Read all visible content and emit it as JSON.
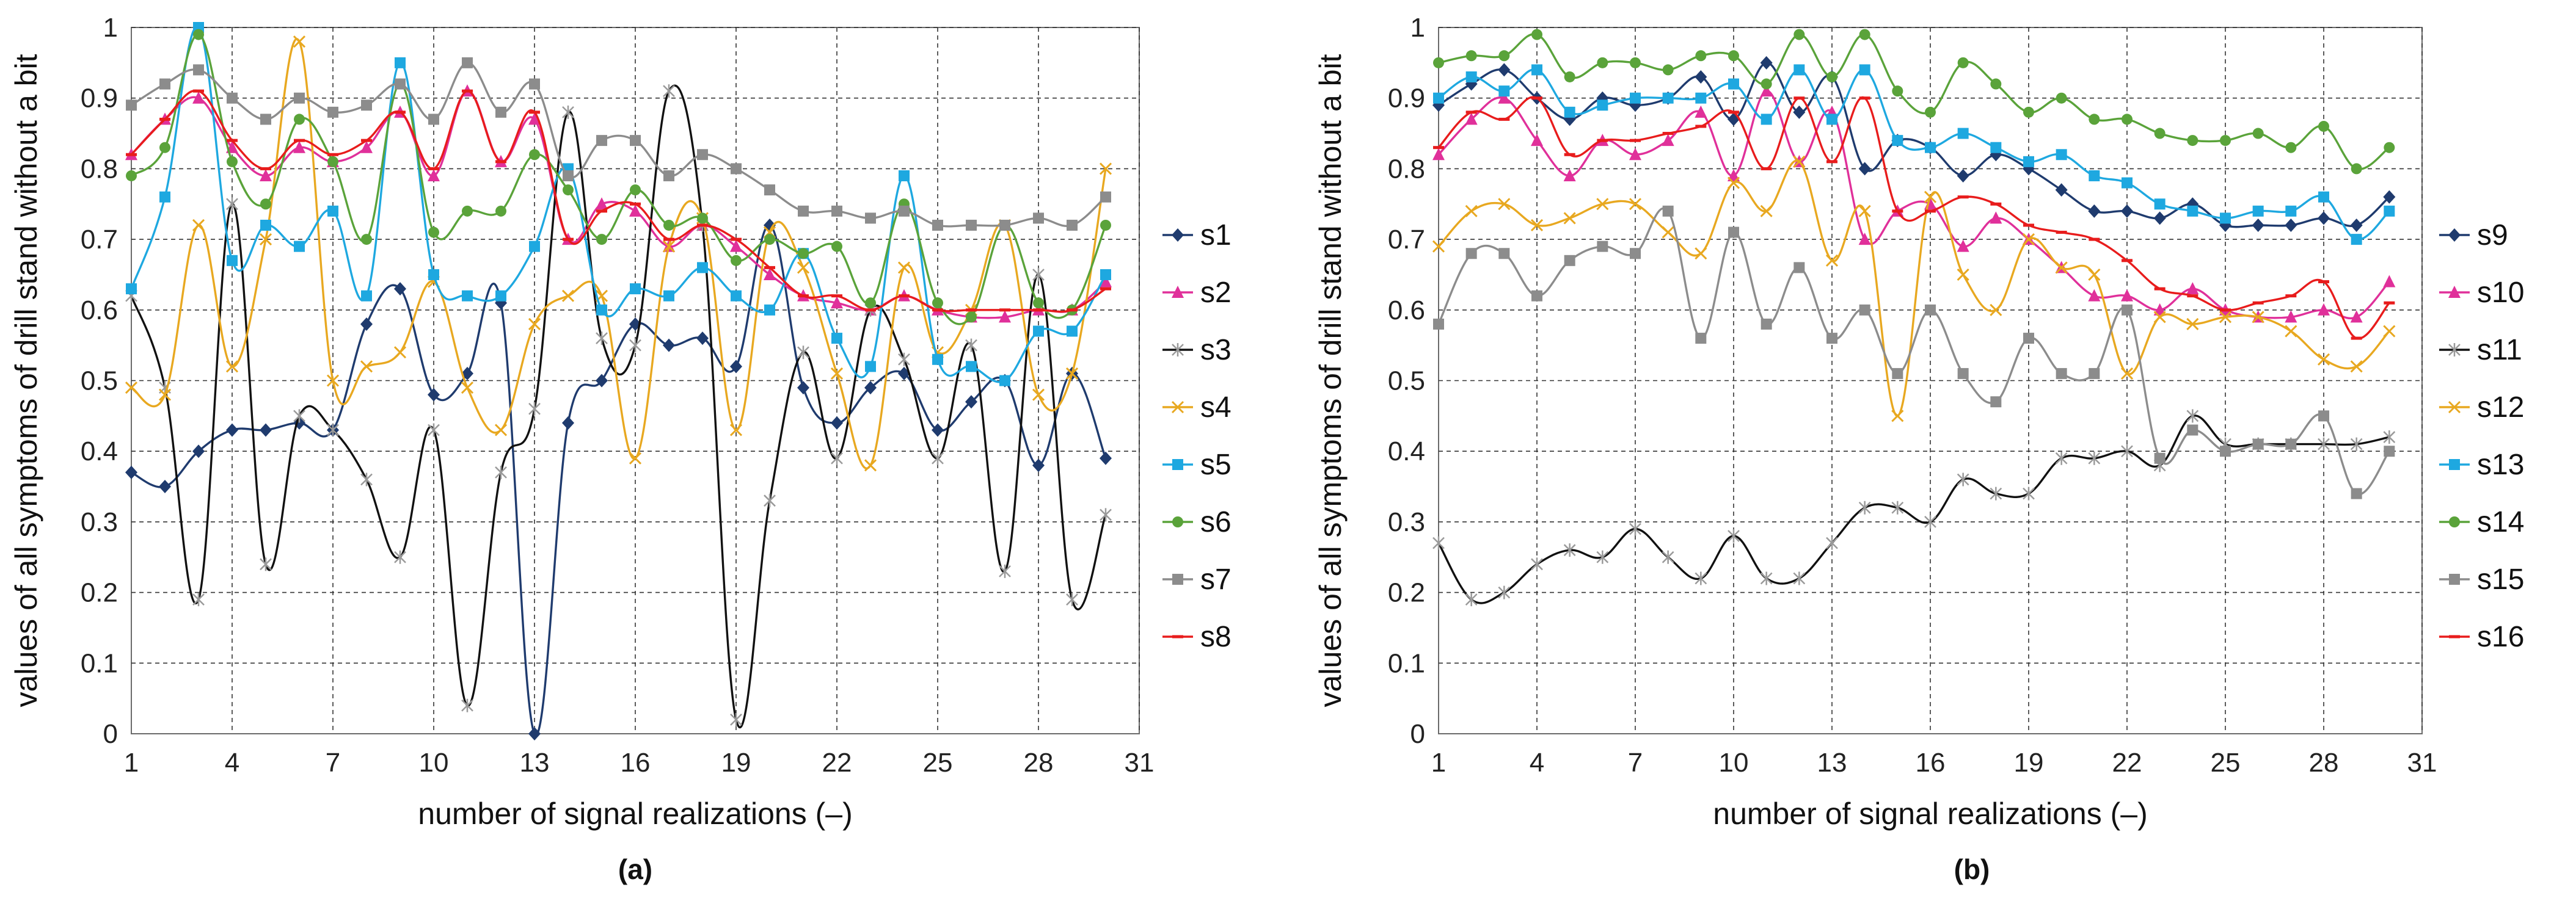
{
  "chart_data": [
    {
      "type": "line",
      "panel_label": "(a)",
      "title": "",
      "xlabel": "number of signal realizations (–)",
      "ylabel": "values of all symptoms of drill stand without a bit",
      "xlim": [
        1,
        31
      ],
      "ylim": [
        0,
        1
      ],
      "xticks": [
        1,
        4,
        7,
        10,
        13,
        16,
        19,
        22,
        25,
        28,
        31
      ],
      "yticks": [
        0,
        0.1,
        0.2,
        0.3,
        0.4,
        0.5,
        0.6,
        0.7,
        0.8,
        0.9,
        1
      ],
      "grid": true,
      "legend_position": "right",
      "x": [
        1,
        2,
        3,
        4,
        5,
        6,
        7,
        8,
        9,
        10,
        11,
        12,
        13,
        14,
        15,
        16,
        17,
        18,
        19,
        20,
        21,
        22,
        23,
        24,
        25,
        26,
        27,
        28,
        29,
        30
      ],
      "series": [
        {
          "name": "s1",
          "color": "#1f3b6e",
          "marker": "diamond",
          "values": [
            0.37,
            0.35,
            0.4,
            0.43,
            0.43,
            0.44,
            0.43,
            0.58,
            0.63,
            0.48,
            0.51,
            0.61,
            0.0,
            0.44,
            0.5,
            0.58,
            0.55,
            0.56,
            0.52,
            0.72,
            0.49,
            0.44,
            0.49,
            0.51,
            0.43,
            0.47,
            0.5,
            0.38,
            0.51,
            0.39
          ]
        },
        {
          "name": "s2",
          "color": "#e0309a",
          "marker": "triangle",
          "values": [
            0.82,
            0.87,
            0.9,
            0.83,
            0.79,
            0.83,
            0.81,
            0.83,
            0.88,
            0.79,
            0.91,
            0.81,
            0.87,
            0.7,
            0.75,
            0.74,
            0.69,
            0.72,
            0.69,
            0.65,
            0.62,
            0.61,
            0.6,
            0.62,
            0.6,
            0.59,
            0.59,
            0.6,
            0.6,
            0.64
          ]
        },
        {
          "name": "s3",
          "color": "#111111",
          "marker": "star",
          "values": [
            0.62,
            0.49,
            0.19,
            0.75,
            0.24,
            0.45,
            0.43,
            0.36,
            0.25,
            0.43,
            0.04,
            0.37,
            0.46,
            0.88,
            0.56,
            0.55,
            0.91,
            0.72,
            0.02,
            0.33,
            0.54,
            0.39,
            0.6,
            0.53,
            0.39,
            0.55,
            0.23,
            0.65,
            0.19,
            0.31
          ]
        },
        {
          "name": "s4",
          "color": "#e8a820",
          "marker": "cross",
          "values": [
            0.49,
            0.48,
            0.72,
            0.52,
            0.7,
            0.98,
            0.5,
            0.52,
            0.54,
            0.64,
            0.49,
            0.43,
            0.58,
            0.62,
            0.62,
            0.39,
            0.69,
            0.73,
            0.43,
            0.71,
            0.66,
            0.51,
            0.38,
            0.66,
            0.54,
            0.6,
            0.72,
            0.48,
            0.51,
            0.8
          ]
        },
        {
          "name": "s5",
          "color": "#1ea8e0",
          "marker": "square",
          "values": [
            0.63,
            0.76,
            1.0,
            0.67,
            0.72,
            0.69,
            0.74,
            0.62,
            0.95,
            0.65,
            0.62,
            0.62,
            0.69,
            0.8,
            0.6,
            0.63,
            0.62,
            0.66,
            0.62,
            0.6,
            0.68,
            0.56,
            0.52,
            0.79,
            0.53,
            0.52,
            0.5,
            0.57,
            0.57,
            0.65
          ]
        },
        {
          "name": "s6",
          "color": "#5aa33a",
          "marker": "circle",
          "values": [
            0.79,
            0.83,
            0.99,
            0.81,
            0.75,
            0.87,
            0.81,
            0.7,
            0.92,
            0.71,
            0.74,
            0.74,
            0.82,
            0.77,
            0.7,
            0.77,
            0.72,
            0.73,
            0.67,
            0.7,
            0.68,
            0.69,
            0.61,
            0.75,
            0.61,
            0.59,
            0.72,
            0.61,
            0.6,
            0.72
          ]
        },
        {
          "name": "s7",
          "color": "#8c8c8c",
          "marker": "square",
          "values": [
            0.89,
            0.92,
            0.94,
            0.9,
            0.87,
            0.9,
            0.88,
            0.89,
            0.92,
            0.87,
            0.95,
            0.88,
            0.92,
            0.79,
            0.84,
            0.84,
            0.79,
            0.82,
            0.8,
            0.77,
            0.74,
            0.74,
            0.73,
            0.74,
            0.72,
            0.72,
            0.72,
            0.73,
            0.72,
            0.76
          ]
        },
        {
          "name": "s8",
          "color": "#e81c1c",
          "marker": "dash",
          "values": [
            0.82,
            0.87,
            0.91,
            0.84,
            0.8,
            0.84,
            0.82,
            0.84,
            0.88,
            0.8,
            0.91,
            0.81,
            0.88,
            0.7,
            0.74,
            0.75,
            0.7,
            0.72,
            0.7,
            0.66,
            0.62,
            0.62,
            0.6,
            0.62,
            0.6,
            0.6,
            0.6,
            0.6,
            0.6,
            0.63
          ]
        }
      ]
    },
    {
      "type": "line",
      "panel_label": "(b)",
      "title": "",
      "xlabel": "number of signal realizations (–)",
      "ylabel": "values of all symptoms of drill stand without a bit",
      "xlim": [
        1,
        31
      ],
      "ylim": [
        0,
        1
      ],
      "xticks": [
        1,
        4,
        7,
        10,
        13,
        16,
        19,
        22,
        25,
        28,
        31
      ],
      "yticks": [
        0,
        0.1,
        0.2,
        0.3,
        0.4,
        0.5,
        0.6,
        0.7,
        0.8,
        0.9,
        1
      ],
      "grid": true,
      "legend_position": "right",
      "x": [
        1,
        2,
        3,
        4,
        5,
        6,
        7,
        8,
        9,
        10,
        11,
        12,
        13,
        14,
        15,
        16,
        17,
        18,
        19,
        20,
        21,
        22,
        23,
        24,
        25,
        26,
        27,
        28,
        29,
        30
      ],
      "series": [
        {
          "name": "s9",
          "color": "#1f3b6e",
          "marker": "diamond",
          "values": [
            0.89,
            0.92,
            0.94,
            0.9,
            0.87,
            0.9,
            0.89,
            0.9,
            0.93,
            0.87,
            0.95,
            0.88,
            0.93,
            0.8,
            0.84,
            0.83,
            0.79,
            0.82,
            0.8,
            0.77,
            0.74,
            0.74,
            0.73,
            0.75,
            0.72,
            0.72,
            0.72,
            0.73,
            0.72,
            0.76
          ]
        },
        {
          "name": "s10",
          "color": "#e0309a",
          "marker": "triangle",
          "values": [
            0.82,
            0.87,
            0.9,
            0.84,
            0.79,
            0.84,
            0.82,
            0.84,
            0.88,
            0.79,
            0.91,
            0.81,
            0.88,
            0.7,
            0.74,
            0.75,
            0.69,
            0.73,
            0.7,
            0.66,
            0.62,
            0.62,
            0.6,
            0.63,
            0.6,
            0.59,
            0.59,
            0.6,
            0.59,
            0.64
          ]
        },
        {
          "name": "s11",
          "color": "#111111",
          "marker": "star",
          "values": [
            0.27,
            0.19,
            0.2,
            0.24,
            0.26,
            0.25,
            0.29,
            0.25,
            0.22,
            0.28,
            0.22,
            0.22,
            0.27,
            0.32,
            0.32,
            0.3,
            0.36,
            0.34,
            0.34,
            0.39,
            0.39,
            0.4,
            0.38,
            0.45,
            0.41,
            0.41,
            0.41,
            0.41,
            0.41,
            0.42
          ]
        },
        {
          "name": "s12",
          "color": "#e8a820",
          "marker": "cross",
          "values": [
            0.69,
            0.74,
            0.75,
            0.72,
            0.73,
            0.75,
            0.75,
            0.71,
            0.68,
            0.78,
            0.74,
            0.81,
            0.67,
            0.74,
            0.45,
            0.76,
            0.65,
            0.6,
            0.7,
            0.66,
            0.65,
            0.51,
            0.59,
            0.58,
            0.59,
            0.59,
            0.57,
            0.53,
            0.52,
            0.57
          ]
        },
        {
          "name": "s13",
          "color": "#1ea8e0",
          "marker": "square",
          "values": [
            0.9,
            0.93,
            0.91,
            0.94,
            0.88,
            0.89,
            0.9,
            0.9,
            0.9,
            0.92,
            0.87,
            0.94,
            0.87,
            0.94,
            0.84,
            0.83,
            0.85,
            0.83,
            0.81,
            0.82,
            0.79,
            0.78,
            0.75,
            0.74,
            0.73,
            0.74,
            0.74,
            0.76,
            0.7,
            0.74
          ]
        },
        {
          "name": "s14",
          "color": "#5aa33a",
          "marker": "circle",
          "values": [
            0.95,
            0.96,
            0.96,
            0.99,
            0.93,
            0.95,
            0.95,
            0.94,
            0.96,
            0.96,
            0.92,
            0.99,
            0.93,
            0.99,
            0.91,
            0.88,
            0.95,
            0.92,
            0.88,
            0.9,
            0.87,
            0.87,
            0.85,
            0.84,
            0.84,
            0.85,
            0.83,
            0.86,
            0.8,
            0.83
          ]
        },
        {
          "name": "s15",
          "color": "#8c8c8c",
          "marker": "square",
          "values": [
            0.58,
            0.68,
            0.68,
            0.62,
            0.67,
            0.69,
            0.68,
            0.74,
            0.56,
            0.71,
            0.58,
            0.66,
            0.56,
            0.6,
            0.51,
            0.6,
            0.51,
            0.47,
            0.56,
            0.51,
            0.51,
            0.6,
            0.39,
            0.43,
            0.4,
            0.41,
            0.41,
            0.45,
            0.34,
            0.4
          ]
        },
        {
          "name": "s16",
          "color": "#e81c1c",
          "marker": "dash",
          "values": [
            0.83,
            0.88,
            0.87,
            0.9,
            0.82,
            0.84,
            0.84,
            0.85,
            0.86,
            0.88,
            0.8,
            0.9,
            0.81,
            0.9,
            0.74,
            0.74,
            0.76,
            0.75,
            0.72,
            0.71,
            0.7,
            0.67,
            0.63,
            0.62,
            0.6,
            0.61,
            0.62,
            0.64,
            0.56,
            0.61
          ]
        }
      ]
    }
  ]
}
